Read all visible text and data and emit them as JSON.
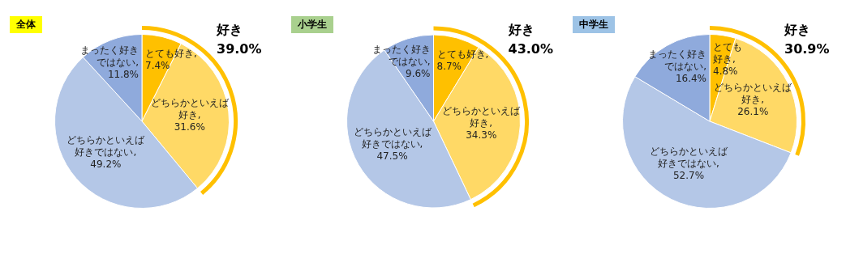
{
  "chart_data": [
    {
      "type": "pie",
      "title": "全体",
      "categories": [
        "とても好き, 7.4%",
        "どちらかといえば好き, 31.6%",
        "どちらかといえば好きではない, 49.2%",
        "まったく好きではない, 11.8%"
      ],
      "values": [
        7.4,
        31.6,
        49.2,
        11.8
      ],
      "colors": [
        "#ffc000",
        "#ffd966",
        "#b4c7e7",
        "#8faadc"
      ],
      "annotations": [
        "好き\n39.0%"
      ]
    },
    {
      "type": "pie",
      "title": "小学生",
      "categories": [
        "とても好き, 8.7%",
        "どちらかといえば好き, 34.3%",
        "どちらかといえば好きではない, 47.5%",
        "まったく好きではない, 9.6%"
      ],
      "values": [
        8.7,
        34.3,
        47.5,
        9.6
      ],
      "colors": [
        "#ffc000",
        "#ffd966",
        "#b4c7e7",
        "#8faadc"
      ],
      "annotations": [
        "好き\n43.0%"
      ]
    },
    {
      "type": "pie",
      "title": "中学生",
      "categories": [
        "とても好き, 4.8%",
        "どちらかといえば好き, 26.1%",
        "どちらかといえば好きではない, 52.7%",
        "まったく好きではない, 16.4%"
      ],
      "values": [
        4.8,
        26.1,
        52.7,
        16.4
      ],
      "colors": [
        "#ffc000",
        "#ffd966",
        "#b4c7e7",
        "#8faadc"
      ],
      "annotations": [
        "好き\n30.9%"
      ]
    }
  ]
}
